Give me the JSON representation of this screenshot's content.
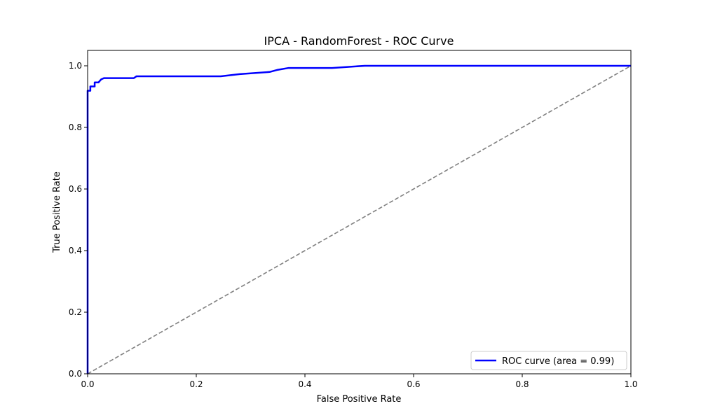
{
  "chart_data": {
    "type": "line",
    "title": "IPCA - RandomForest - ROC Curve",
    "xlabel": "False Positive Rate",
    "ylabel": "True Positive Rate",
    "xlim": [
      0.0,
      1.0
    ],
    "ylim": [
      0.0,
      1.05
    ],
    "xticks": [
      "0.0",
      "0.2",
      "0.4",
      "0.6",
      "0.8",
      "1.0"
    ],
    "yticks": [
      "0.0",
      "0.2",
      "0.4",
      "0.6",
      "0.8",
      "1.0"
    ],
    "grid": false,
    "legend_position": "lower-right",
    "series": [
      {
        "name": "ROC curve (area = 0.99)",
        "color": "#0000ff",
        "style": "solid",
        "points": [
          [
            0.0,
            0.0
          ],
          [
            0.0,
            0.919
          ],
          [
            0.005,
            0.919
          ],
          [
            0.005,
            0.933
          ],
          [
            0.013,
            0.933
          ],
          [
            0.013,
            0.946
          ],
          [
            0.02,
            0.946
          ],
          [
            0.025,
            0.956
          ],
          [
            0.03,
            0.96
          ],
          [
            0.085,
            0.96
          ],
          [
            0.09,
            0.966
          ],
          [
            0.245,
            0.966
          ],
          [
            0.28,
            0.973
          ],
          [
            0.335,
            0.98
          ],
          [
            0.35,
            0.987
          ],
          [
            0.37,
            0.993
          ],
          [
            0.45,
            0.993
          ],
          [
            0.51,
            1.0
          ],
          [
            1.0,
            1.0
          ]
        ]
      },
      {
        "name": "",
        "color": "#808080",
        "style": "dashed",
        "points": [
          [
            0.0,
            0.0
          ],
          [
            1.0,
            1.0
          ]
        ]
      }
    ]
  }
}
